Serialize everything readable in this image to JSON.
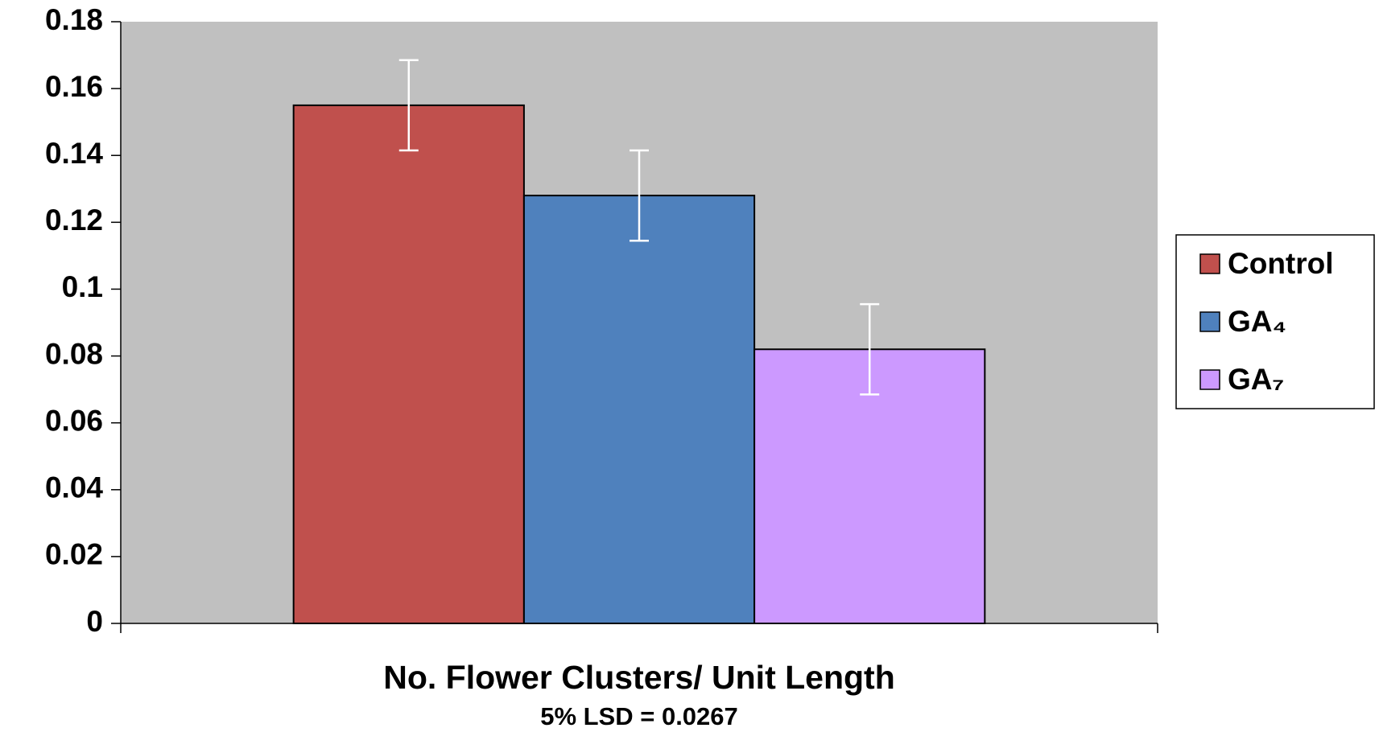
{
  "chart_data": {
    "type": "bar",
    "xlabel": "No. Flower Clusters/ Unit Length",
    "subtitle": "5% LSD = 0.0267",
    "categories": [
      null
    ],
    "series": [
      {
        "name": "Control",
        "color": "#c0504d",
        "values": [
          0.155
        ],
        "errors": [
          0.0135
        ]
      },
      {
        "name": "GA₄",
        "color": "#4f81bd",
        "values": [
          0.128
        ],
        "errors": [
          0.0135
        ]
      },
      {
        "name": "GA₇",
        "color": "#cc99ff",
        "values": [
          0.082
        ],
        "errors": [
          0.0135
        ]
      }
    ],
    "ylim": [
      0,
      0.18
    ],
    "yticks": [
      0,
      0.02,
      0.04,
      0.06,
      0.08,
      0.1,
      0.12,
      0.14,
      0.16,
      0.18
    ],
    "grid": false,
    "legend": "right",
    "plot_background": "#c0c0c0",
    "error_color": "#ffffff"
  }
}
